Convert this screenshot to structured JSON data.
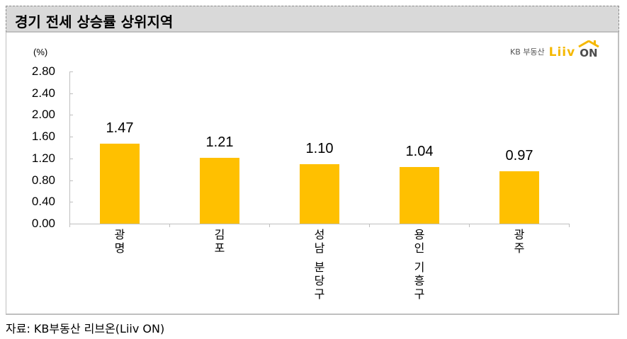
{
  "header": {
    "title": "경기 전세 상승률 상위지역"
  },
  "logo": {
    "kb_text": "KB 부동산",
    "liiv_text": "Liiv",
    "on_text": "ON"
  },
  "footer": {
    "source": "자료: KB부동산 리브온(Liiv ON)"
  },
  "colors": {
    "bar": "#ffc000",
    "header_bg": "#d9d9d9",
    "axis": "#bfbfbf"
  },
  "chart_data": {
    "type": "bar",
    "title": "경기 전세 상승률 상위지역",
    "unit_label": "(%)",
    "xlabel": "",
    "ylabel": "(%)",
    "ylim": [
      0,
      2.8
    ],
    "yticks": [
      "0.00",
      "0.40",
      "0.80",
      "1.20",
      "1.60",
      "2.00",
      "2.40",
      "2.80"
    ],
    "categories": [
      "광명",
      "김포",
      "성남 분당구",
      "용인 기흥구",
      "광주"
    ],
    "category_lines": [
      [
        "광",
        "명"
      ],
      [
        "김",
        "포"
      ],
      [
        "성",
        "남",
        "",
        "분",
        "당",
        "구"
      ],
      [
        "용",
        "인",
        "",
        "기",
        "흥",
        "구"
      ],
      [
        "광",
        "주"
      ]
    ],
    "values": [
      1.47,
      1.21,
      1.1,
      1.04,
      0.97
    ],
    "value_labels": [
      "1.47",
      "1.21",
      "1.10",
      "1.04",
      "0.97"
    ],
    "legend": [],
    "grid": false,
    "source": "자료: KB부동산 리브온(Liiv ON)"
  }
}
